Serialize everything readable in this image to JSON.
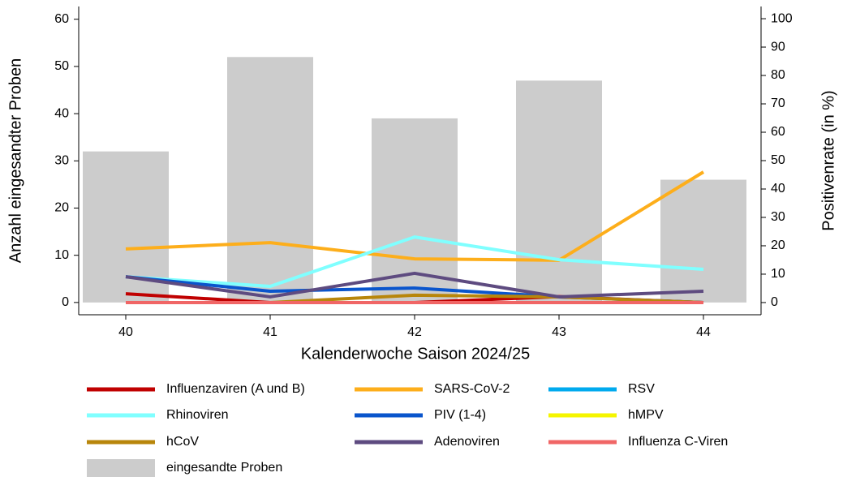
{
  "chart_data": {
    "type": "bar",
    "x_label": "Kalenderwoche Saison 2024/25",
    "y_label": "Anzahl eingesandter Proben",
    "y2_label": "Positivenrate (in %)",
    "categories": [
      "40",
      "41",
      "42",
      "43",
      "44"
    ],
    "ylim": [
      -2.6,
      62.7
    ],
    "yticks": [
      0,
      10,
      20,
      30,
      40,
      50,
      60
    ],
    "y2lim": [
      -4.3,
      104.3
    ],
    "y2ticks": [
      0,
      10,
      20,
      30,
      40,
      50,
      60,
      70,
      80,
      90,
      100
    ],
    "series": [
      {
        "name": "eingesandte Proben",
        "type": "bar",
        "color": "#cccccc",
        "values": [
          32,
          52,
          39,
          47,
          26
        ]
      },
      {
        "name": "Influenzaviren (A und B)",
        "type": "line",
        "axis": "y2",
        "color": "#c00000",
        "values": [
          3.1,
          0,
          0,
          2.1,
          0
        ]
      },
      {
        "name": "SARS-CoV-2",
        "type": "line",
        "axis": "y2",
        "color": "#fdae1b",
        "values": [
          18.9,
          21.1,
          15.4,
          14.9,
          46
        ]
      },
      {
        "name": "RSV",
        "type": "line",
        "axis": "y2",
        "color": "#00aaee",
        "values": [
          0,
          0,
          0,
          0,
          0
        ]
      },
      {
        "name": "Rhinoviren",
        "type": "line",
        "axis": "y2",
        "color": "#80ffff",
        "values": [
          9.1,
          5.7,
          23.1,
          15.1,
          11.7
        ]
      },
      {
        "name": "PIV (1-4)",
        "type": "line",
        "axis": "y2",
        "color": "#0a55cc",
        "values": [
          9.1,
          4,
          5.1,
          2,
          0
        ]
      },
      {
        "name": "hMPV",
        "type": "line",
        "axis": "y2",
        "color": "#f5f500",
        "values": [
          0,
          0,
          0,
          0,
          0
        ]
      },
      {
        "name": "hCoV",
        "type": "line",
        "axis": "y2",
        "color": "#b8860b",
        "values": [
          0,
          0,
          2.6,
          2,
          0
        ]
      },
      {
        "name": "Adenoviren",
        "type": "line",
        "axis": "y2",
        "color": "#5e4b80",
        "values": [
          9.1,
          2,
          10.3,
          2,
          4
        ]
      },
      {
        "name": "Influenza C-Viren",
        "type": "line",
        "axis": "y2",
        "color": "#f06666",
        "values": [
          0,
          0,
          0,
          0,
          0
        ]
      }
    ]
  }
}
